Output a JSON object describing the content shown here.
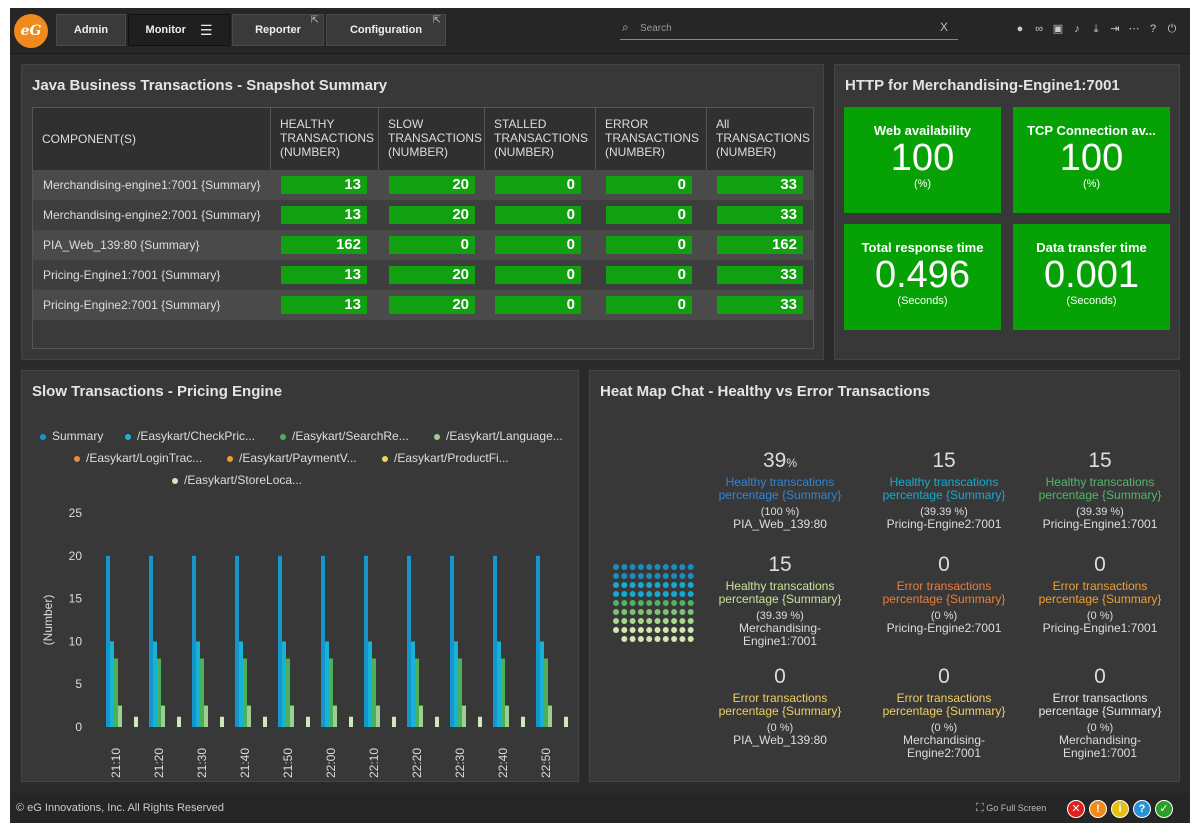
{
  "nav": {
    "logo": "eG",
    "tabs": [
      "Admin",
      "Monitor",
      "Reporter",
      "Configuration"
    ],
    "search_placeholder": "Search",
    "search_clear": "X",
    "icons": [
      "user-icon",
      "link-icon",
      "monitor-icon",
      "bell-icon",
      "download-icon",
      "signin-icon",
      "more-icon",
      "help-icon",
      "power-icon"
    ]
  },
  "jbt": {
    "title": "Java Business Transactions - Snapshot Summary",
    "headers": [
      "COMPONENT(S)",
      "HEALTHY TRANSACTIONS (NUMBER)",
      "SLOW TRANSACTIONS (NUMBER)",
      "STALLED TRANSACTIONS (NUMBER)",
      "ERROR TRANSACTIONS (NUMBER)",
      "All TRANSACTIONS (NUMBER)"
    ],
    "rows": [
      {
        "name": "Merchandising-engine1:7001 {Summary}",
        "v": [
          "13",
          "20",
          "0",
          "0",
          "33"
        ]
      },
      {
        "name": "Merchandising-engine2:7001 {Summary}",
        "v": [
          "13",
          "20",
          "0",
          "0",
          "33"
        ]
      },
      {
        "name": "PIA_Web_139:80 {Summary}",
        "v": [
          "162",
          "0",
          "0",
          "0",
          "162"
        ]
      },
      {
        "name": "Pricing-Engine1:7001 {Summary}",
        "v": [
          "13",
          "20",
          "0",
          "0",
          "33"
        ]
      },
      {
        "name": "Pricing-Engine2:7001 {Summary}",
        "v": [
          "13",
          "20",
          "0",
          "0",
          "33"
        ]
      }
    ]
  },
  "http": {
    "title": "HTTP for Merchandising-Engine1:7001",
    "tiles": [
      {
        "label": "Web availability",
        "value": "100",
        "unit": "(%)"
      },
      {
        "label": "TCP Connection av...",
        "value": "100",
        "unit": "(%)"
      },
      {
        "label": "Total response time",
        "value": "0.496",
        "unit": "(Seconds)"
      },
      {
        "label": "Data transfer time",
        "value": "0.001",
        "unit": "(Seconds)"
      }
    ]
  },
  "slow": {
    "title": "Slow Transactions - Pricing Engine"
  },
  "chart_data": {
    "type": "bar",
    "ylabel": "(Number)",
    "ylim": [
      0,
      25
    ],
    "yticks": [
      "0",
      "5",
      "10",
      "15",
      "20",
      "25"
    ],
    "categories": [
      "21:10",
      "21:20",
      "21:30",
      "21:40",
      "21:50",
      "22:00",
      "22:10",
      "22:20",
      "22:30",
      "22:40",
      "22:50"
    ],
    "series": [
      {
        "name": "Summary",
        "color": "#1595c9",
        "values": [
          20,
          20,
          20,
          20,
          20,
          20,
          20,
          20,
          20,
          20,
          20
        ]
      },
      {
        "name": "/Easykart/CheckPric...",
        "color": "#17b3d6",
        "values": [
          10,
          10,
          10,
          10,
          10,
          10,
          10,
          10,
          10,
          10,
          10
        ]
      },
      {
        "name": "/Easykart/SearchRe...",
        "color": "#4cb05a",
        "values": [
          8,
          8,
          8,
          8,
          8,
          8,
          8,
          8,
          8,
          8,
          8
        ]
      },
      {
        "name": "/Easykart/Language...",
        "color": "#9bd18f",
        "values": [
          2.5,
          2.5,
          2.5,
          2.5,
          2.5,
          2.5,
          2.5,
          2.5,
          2.5,
          2.5,
          2.5
        ]
      },
      {
        "name": "/Easykart/LoginTrac...",
        "color": "#f08a3c",
        "values": [
          0,
          0,
          0,
          0,
          0,
          0,
          0,
          0,
          0,
          0,
          0
        ]
      },
      {
        "name": "/Easykart/PaymentV...",
        "color": "#f0a030",
        "values": [
          0,
          0,
          0,
          0,
          0,
          0,
          0,
          0,
          0,
          0,
          0
        ]
      },
      {
        "name": "/Easykart/ProductFi...",
        "color": "#f0d060",
        "values": [
          0,
          0,
          0,
          0,
          0,
          0,
          0,
          0,
          0,
          0,
          0
        ]
      },
      {
        "name": "/Easykart/StoreLoca...",
        "color": "#cfe8b8",
        "values": [
          1.2,
          1.2,
          1.2,
          1.2,
          1.2,
          1.2,
          1.2,
          1.2,
          1.2,
          1.2,
          1.2
        ]
      }
    ]
  },
  "heat": {
    "title": "Heat Map Chat - Healthy vs Error Transactions",
    "cells": [
      {
        "value": "39",
        "pct": "%",
        "m1": "Healthy transcations",
        "m2": "percentage {Summary}",
        "color": "#2f86d6",
        "p": "(100 %)",
        "s1": "PIA_Web_139:80",
        "s2": ""
      },
      {
        "value": "15",
        "pct": "",
        "m1": "Healthy transcations",
        "m2": "percentage {Summary}",
        "color": "#17a9d2",
        "p": "(39.39 %)",
        "s1": "Pricing-Engine2:7001",
        "s2": ""
      },
      {
        "value": "15",
        "pct": "",
        "m1": "Healthy transcations",
        "m2": "percentage {Summary}",
        "color": "#52b86a",
        "p": "(39.39 %)",
        "s1": "Pricing-Engine1:7001",
        "s2": ""
      },
      {
        "value": "15",
        "pct": "",
        "m1": "Healthy transcations",
        "m2": "percentage {Summary}",
        "color": "#c8e49c",
        "p": "(39.39 %)",
        "s1": "Merchandising-",
        "s2": "Engine1:7001"
      },
      {
        "value": "0",
        "pct": "",
        "m1": "Error transactions",
        "m2": "percentage {Summary}",
        "color": "#ee7d3c",
        "p": "(0 %)",
        "s1": "Pricing-Engine2:7001",
        "s2": ""
      },
      {
        "value": "0",
        "pct": "",
        "m1": "Error transactions",
        "m2": "percentage {Summary}",
        "color": "#f0a030",
        "p": "(0 %)",
        "s1": "Pricing-Engine1:7001",
        "s2": ""
      },
      {
        "value": "0",
        "pct": "",
        "m1": "Error transactions",
        "m2": "percentage {Summary}",
        "color": "#f0d060",
        "p": "(0 %)",
        "s1": "PIA_Web_139:80",
        "s2": ""
      },
      {
        "value": "0",
        "pct": "",
        "m1": "Error transactions",
        "m2": "percentage {Summary}",
        "color": "#f0d060",
        "p": "(0 %)",
        "s1": "Merchandising-",
        "s2": "Engine2:7001"
      },
      {
        "value": "0",
        "pct": "",
        "m1": "Error transactions",
        "m2": "percentage {Summary}",
        "color": "#e8e8e8",
        "p": "(0 %)",
        "s1": "Merchandising-",
        "s2": "Engine1:7001"
      }
    ]
  },
  "footer": {
    "copyright": "© eG Innovations, Inc. All Rights Reserved",
    "fullscreen": "Go Full Screen",
    "status": [
      {
        "symbol": "✕",
        "color": "#e02020",
        "icon": "critical-status-icon"
      },
      {
        "symbol": "!",
        "color": "#f08a1c",
        "icon": "major-status-icon"
      },
      {
        "symbol": "i",
        "color": "#e8c010",
        "icon": "minor-status-icon"
      },
      {
        "symbol": "?",
        "color": "#2a90d8",
        "icon": "unknown-status-icon"
      },
      {
        "symbol": "✓",
        "color": "#2aa02a",
        "icon": "normal-status-icon"
      }
    ]
  }
}
